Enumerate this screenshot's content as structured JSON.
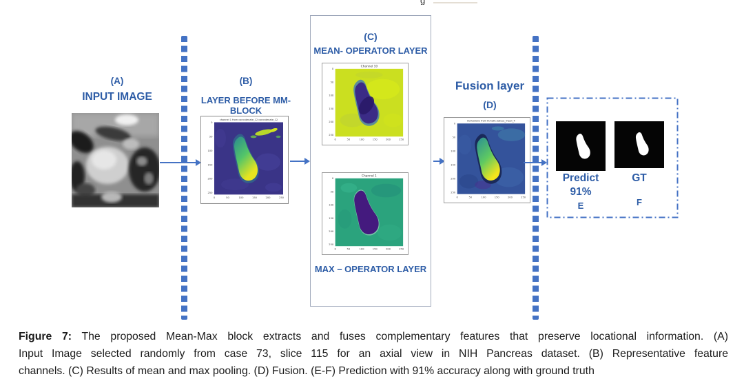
{
  "page": {
    "truncated_text_fragment": "g"
  },
  "diagram": {
    "panel_a": {
      "label": "(A)",
      "title": "INPUT IMAGE"
    },
    "panel_b": {
      "label": "(B)",
      "title": "LAYER BEFORE MM-BLOCK",
      "plot_title": "channel 1 from concatenate_12 concatenate_12"
    },
    "panel_c": {
      "label": "(C)",
      "mean_layer_title": "MEAN- OPERATOR LAYER",
      "mean_plot_title": "Channel 10",
      "max_plot_title": "Channel 1",
      "max_layer_title": "MAX – OPERATOR LAYER"
    },
    "panel_d": {
      "title": "Fusion layer",
      "label": "(D)",
      "plot_title": "Activations from tf.math.reduce_mean_4"
    },
    "panel_ef": {
      "predict_label": "Predict",
      "accuracy": "91%",
      "e_label": "E",
      "gt_label": "GT",
      "f_label": "F"
    },
    "axis_ticks": [
      "0",
      "50",
      "100",
      "150",
      "200",
      "250"
    ],
    "colors": {
      "label_blue": "#2d5ca6",
      "accent_blue": "#4472c4"
    }
  },
  "caption": {
    "prefix": "Figure 7:",
    "line1": "The proposed Mean-Max block extracts and fuses complementary features that preserve locational information. (A)",
    "line2": "Input Image selected randomly from case 73, slice 115 for an axial view in NIH Pancreas dataset. (B) Representative feature",
    "line3": "channels. (C) Results of mean and max pooling. (D) Fusion. (E-F) Prediction with 91% accuracy along with ground truth"
  }
}
